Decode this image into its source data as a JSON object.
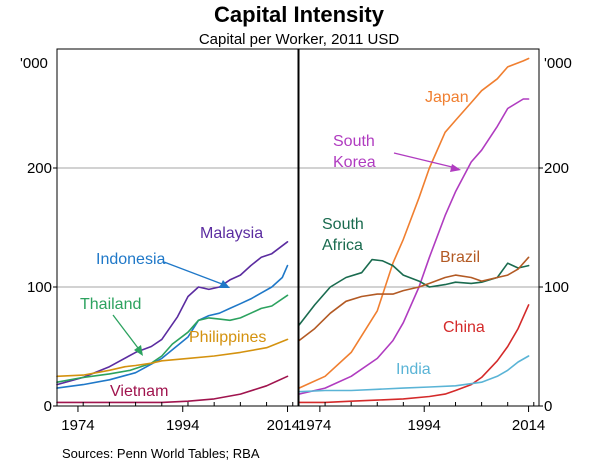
{
  "chart_data": {
    "type": "line",
    "title": "Capital Intensity",
    "subtitle": "Capital per Worker, 2011 USD",
    "unit_left": "'000",
    "unit_right": "'000",
    "source": "Sources:   Penn World Tables; RBA",
    "ylim": [
      0,
      300
    ],
    "yticks": [
      0,
      100,
      200
    ],
    "xlim": [
      1970,
      2016
    ],
    "xticks": [
      1974,
      1994,
      2014
    ],
    "xtick_labels_left": [
      "1974",
      "1994",
      "2014"
    ],
    "xtick_labels_right": [
      "1974",
      "1994",
      "2014"
    ],
    "grid": true,
    "panels": [
      {
        "id": "left",
        "series": [
          {
            "name": "Malaysia",
            "color": "#5b2ca0",
            "x": [
              1970,
              1975,
              1980,
              1985,
              1988,
              1990,
              1993,
              1995,
              1997,
              1999,
              2001,
              2003,
              2005,
              2007,
              2009,
              2011,
              2014
            ],
            "y": [
              18,
              24,
              33,
              45,
              50,
              56,
              75,
              92,
              100,
              98,
              100,
              106,
              110,
              118,
              125,
              128,
              138
            ]
          },
          {
            "name": "Indonesia",
            "color": "#1f78c8",
            "x": [
              1970,
              1975,
              1980,
              1985,
              1990,
              1995,
              1997,
              1999,
              2001,
              2003,
              2005,
              2007,
              2009,
              2011,
              2013,
              2014
            ],
            "y": [
              15,
              18,
              22,
              28,
              40,
              58,
              72,
              76,
              78,
              82,
              86,
              90,
              95,
              100,
              108,
              118
            ]
          },
          {
            "name": "Thailand",
            "color": "#2ca25f",
            "x": [
              1970,
              1975,
              1980,
              1984,
              1988,
              1990,
              1992,
              1995,
              1997,
              1999,
              2001,
              2003,
              2005,
              2007,
              2009,
              2011,
              2014
            ],
            "y": [
              20,
              24,
              27,
              30,
              36,
              42,
              52,
              62,
              72,
              74,
              73,
              72,
              74,
              78,
              82,
              84,
              93
            ]
          },
          {
            "name": "Philippines",
            "color": "#d4920f",
            "x": [
              1970,
              1975,
              1980,
              1983,
              1985,
              1988,
              1990,
              1995,
              2000,
              2005,
              2010,
              2014
            ],
            "y": [
              25,
              26,
              30,
              33,
              34,
              36,
              38,
              40,
              42,
              45,
              49,
              56
            ]
          },
          {
            "name": "Vietnam",
            "color": "#a0144e",
            "x": [
              1970,
              1975,
              1980,
              1985,
              1990,
              1995,
              2000,
              2005,
              2010,
              2014
            ],
            "y": [
              3,
              3,
              3,
              3,
              3,
              4,
              6,
              10,
              17,
              25
            ]
          }
        ]
      },
      {
        "id": "right",
        "series": [
          {
            "name": "Japan",
            "color": "#f07f30",
            "x": [
              1970,
              1975,
              1980,
              1985,
              1988,
              1990,
              1993,
              1995,
              1998,
              2000,
              2003,
              2005,
              2008,
              2010,
              2013,
              2014
            ],
            "y": [
              15,
              25,
              45,
              80,
              120,
              140,
              175,
              200,
              230,
              240,
              255,
              265,
              275,
              285,
              290,
              292
            ]
          },
          {
            "name": "South Korea",
            "color": "#b03cc0",
            "x": [
              1970,
              1975,
              1980,
              1985,
              1988,
              1990,
              1993,
              1995,
              1998,
              2000,
              2003,
              2005,
              2008,
              2010,
              2013,
              2014
            ],
            "y": [
              10,
              15,
              25,
              40,
              55,
              70,
              100,
              125,
              160,
              180,
              205,
              215,
              235,
              250,
              258,
              258
            ]
          },
          {
            "name": "South Africa",
            "color": "#1a6b4f",
            "x": [
              1970,
              1973,
              1976,
              1979,
              1982,
              1984,
              1986,
              1988,
              1990,
              1993,
              1995,
              1998,
              2000,
              2003,
              2005,
              2008,
              2010,
              2012,
              2014
            ],
            "y": [
              68,
              85,
              100,
              108,
              112,
              123,
              122,
              118,
              110,
              105,
              100,
              102,
              104,
              103,
              104,
              108,
              120,
              116,
              118
            ]
          },
          {
            "name": "Brazil",
            "color": "#b35a24",
            "x": [
              1970,
              1973,
              1976,
              1979,
              1982,
              1985,
              1988,
              1990,
              1993,
              1995,
              1998,
              2000,
              2003,
              2005,
              2008,
              2010,
              2012,
              2014
            ],
            "y": [
              55,
              65,
              78,
              88,
              92,
              94,
              94,
              97,
              100,
              103,
              108,
              110,
              108,
              105,
              108,
              110,
              115,
              125
            ]
          },
          {
            "name": "China",
            "color": "#d42a2a",
            "x": [
              1970,
              1975,
              1980,
              1985,
              1990,
              1995,
              1998,
              2000,
              2003,
              2005,
              2008,
              2010,
              2012,
              2014
            ],
            "y": [
              3,
              3,
              4,
              5,
              6,
              8,
              10,
              13,
              18,
              24,
              38,
              50,
              65,
              85
            ]
          },
          {
            "name": "India",
            "color": "#5ab4d6",
            "x": [
              1970,
              1975,
              1980,
              1985,
              1990,
              1995,
              2000,
              2005,
              2008,
              2010,
              2012,
              2014
            ],
            "y": [
              12,
              13,
              13,
              14,
              15,
              16,
              17,
              20,
              25,
              30,
              37,
              42
            ]
          }
        ]
      }
    ],
    "annotations": [
      {
        "text": "Malaysia",
        "panel": "left",
        "color": "#5b2ca0"
      },
      {
        "text": "Indonesia",
        "panel": "left",
        "color": "#1f78c8"
      },
      {
        "text": "Thailand",
        "panel": "left",
        "color": "#2ca25f"
      },
      {
        "text": "Philippines",
        "panel": "left",
        "color": "#d4920f"
      },
      {
        "text": "Vietnam",
        "panel": "left",
        "color": "#a0144e"
      },
      {
        "text": "Japan",
        "panel": "right",
        "color": "#f07f30"
      },
      {
        "text": "South",
        "panel": "right",
        "color": "#b03cc0"
      },
      {
        "text": "Korea",
        "panel": "right",
        "color": "#b03cc0"
      },
      {
        "text": "South",
        "panel": "right",
        "color": "#1a6b4f"
      },
      {
        "text": "Africa",
        "panel": "right",
        "color": "#1a6b4f"
      },
      {
        "text": "Brazil",
        "panel": "right",
        "color": "#b35a24"
      },
      {
        "text": "China",
        "panel": "right",
        "color": "#d42a2a"
      },
      {
        "text": "India",
        "panel": "right",
        "color": "#5ab4d6"
      }
    ]
  }
}
